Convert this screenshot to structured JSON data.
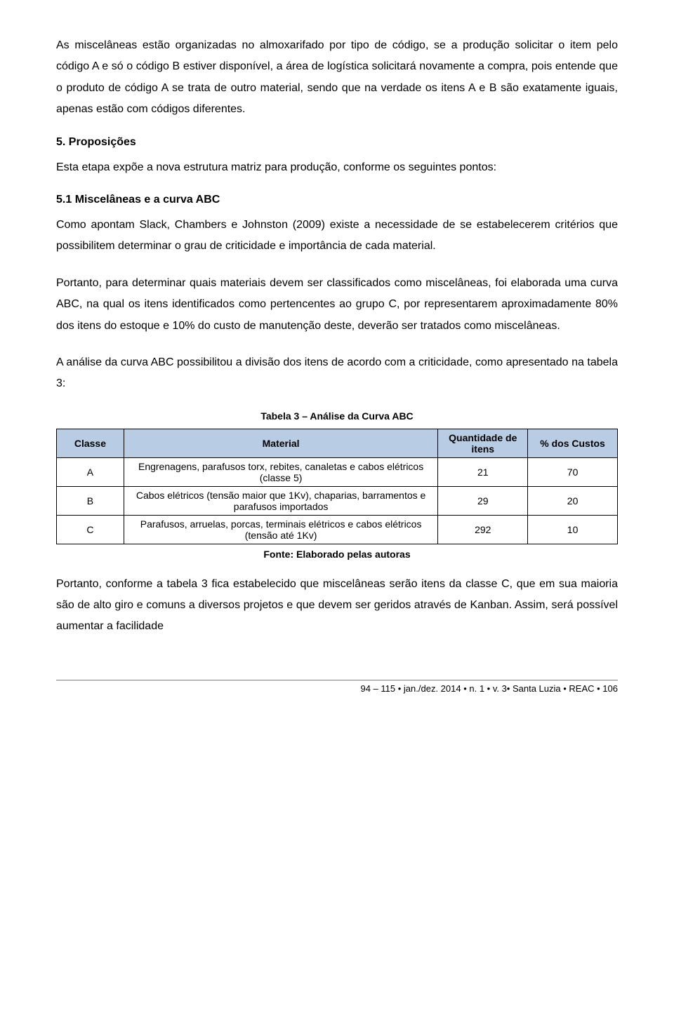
{
  "paragraphs": {
    "p1": "As miscelâneas estão organizadas no almoxarifado por tipo de código, se a produção solicitar o item pelo código A e só o código B estiver disponível, a área de logística solicitará novamente a compra, pois entende que o produto de código A se trata de outro material, sendo que na verdade os itens A e B são exatamente iguais, apenas estão com códigos diferentes.",
    "h1": "5. Proposições",
    "p2": "Esta etapa expõe a nova estrutura matriz para produção, conforme os seguintes pontos:",
    "h2": "5.1 Miscelâneas e a curva ABC",
    "p3": "Como apontam Slack, Chambers e Johnston (2009) existe a necessidade de se estabelecerem critérios que possibilitem determinar o grau de criticidade e importância de cada material.",
    "p4": "Portanto, para determinar quais materiais devem ser classificados como miscelâneas, foi elaborada uma curva ABC, na qual os itens identificados como pertencentes ao grupo C, por representarem aproximadamente 80% dos itens do estoque e 10% do custo de manutenção deste, deverão ser tratados como miscelâneas.",
    "p5": "A análise da curva ABC possibilitou a divisão dos itens de acordo com a criticidade, como apresentado na tabela 3:",
    "p6": "Portanto, conforme a tabela 3 fica estabelecido que miscelâneas serão itens da classe C, que em sua maioria são de alto giro e comuns a diversos projetos e que devem ser geridos através de Kanban. Assim, será possível aumentar a facilidade"
  },
  "table": {
    "caption": "Tabela 3 – Análise da Curva ABC",
    "header_color": "#b8cce4",
    "border_color": "#000000",
    "columns": [
      "Classe",
      "Material",
      "Quantidade de itens",
      "% dos Custos"
    ],
    "rows": [
      [
        "A",
        "Engrenagens, parafusos torx, rebites, canaletas e cabos elétricos (classe 5)",
        "21",
        "70"
      ],
      [
        "B",
        "Cabos elétricos (tensão maior que 1Kv), chaparias, barramentos e parafusos importados",
        "29",
        "20"
      ],
      [
        "C",
        "Parafusos, arruelas, porcas, terminais elétricos e cabos elétricos (tensão até 1Kv)",
        "292",
        "10"
      ]
    ],
    "source": "Fonte: Elaborado pelas autoras"
  },
  "footer": {
    "text": "94 – 115 • jan./dez. 2014 • n. 1 • v. 3• Santa Luzia • REAC • 106"
  },
  "styles": {
    "body_font_size": 16,
    "caption_font_size": 14,
    "header_bg": "#b8cce4",
    "page_bg": "#ffffff",
    "text_color": "#000000",
    "divider_color": "#808080"
  }
}
